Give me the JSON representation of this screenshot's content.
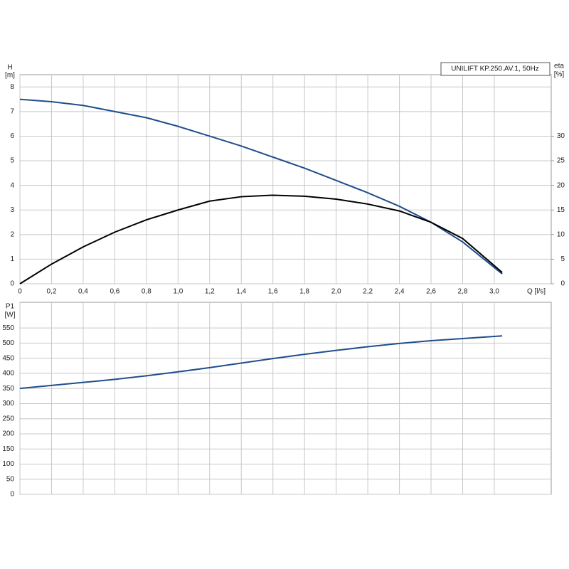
{
  "chart_data": [
    {
      "type": "line",
      "title": "UNILIFT KP.250.AV.1, 50Hz",
      "y_label": "H",
      "y_unit": "[m]",
      "y2_label": "eta",
      "y2_unit": "[%]",
      "x_label": "Q [l/s]",
      "x": [
        0,
        0.2,
        0.4,
        0.6,
        0.8,
        1.0,
        1.2,
        1.4,
        1.6,
        1.8,
        2.0,
        2.2,
        2.4,
        2.6,
        2.8,
        3.05
      ],
      "series": [
        {
          "name": "H",
          "color": "#1f4e8c",
          "values": [
            7.5,
            7.4,
            7.25,
            7.0,
            6.75,
            6.4,
            6.0,
            5.6,
            5.15,
            4.7,
            4.2,
            3.7,
            3.15,
            2.5,
            1.7,
            0.4
          ]
        },
        {
          "name": "eta",
          "color": "#000000",
          "axis": "y2",
          "values": [
            0,
            4,
            7.5,
            10.5,
            13,
            15,
            16.8,
            17.7,
            18,
            17.8,
            17.2,
            16.2,
            14.8,
            12.5,
            9.2,
            2.3
          ]
        }
      ],
      "xlim": [
        0,
        3.36
      ],
      "xticks": [
        0,
        {
          "value": 0.2,
          "label": "0,2"
        },
        {
          "value": 0.4,
          "label": "0,4"
        },
        {
          "value": 0.6,
          "label": "0,6"
        },
        {
          "value": 0.8,
          "label": "0,8"
        },
        {
          "value": 1.0,
          "label": "1,0"
        },
        {
          "value": 1.2,
          "label": "1,2"
        },
        {
          "value": 1.4,
          "label": "1,4"
        },
        {
          "value": 1.6,
          "label": "1,6"
        },
        {
          "value": 1.8,
          "label": "1,8"
        },
        {
          "value": 2.0,
          "label": "2,0"
        },
        {
          "value": 2.2,
          "label": "2,2"
        },
        {
          "value": 2.4,
          "label": "2,4"
        },
        {
          "value": 2.6,
          "label": "2,6"
        },
        {
          "value": 2.8,
          "label": "2,8"
        },
        {
          "value": 3.0,
          "label": "3,0"
        }
      ],
      "ylim": [
        0,
        8.5
      ],
      "yticks": [
        0,
        1,
        2,
        3,
        4,
        5,
        6,
        7,
        8
      ],
      "y2lim": [
        0,
        42.5
      ],
      "y2ticks": [
        0,
        5,
        10,
        15,
        20,
        25,
        30
      ],
      "grid": true
    },
    {
      "type": "line",
      "y_label": "P1",
      "y_unit": "[W]",
      "x": [
        0,
        0.2,
        0.4,
        0.6,
        0.8,
        1.0,
        1.2,
        1.4,
        1.6,
        1.8,
        2.0,
        2.2,
        2.4,
        2.6,
        2.8,
        3.05
      ],
      "series": [
        {
          "name": "P1",
          "color": "#1f4e8c",
          "values": [
            350,
            360,
            370,
            380,
            392,
            405,
            419,
            434,
            449,
            463,
            476,
            488,
            499,
            508,
            515,
            524
          ]
        }
      ],
      "xlim": [
        0,
        3.36
      ],
      "ylim": [
        0,
        635
      ],
      "yticks": [
        0,
        50,
        100,
        150,
        200,
        250,
        300,
        350,
        400,
        450,
        500,
        550
      ],
      "grid": true
    }
  ]
}
